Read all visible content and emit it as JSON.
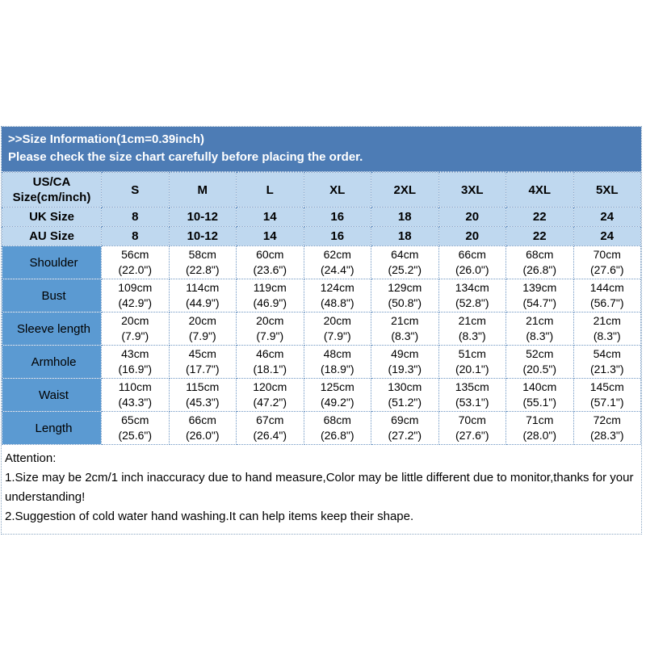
{
  "banner": {
    "title": ">>Size Information(1cm=0.39inch)",
    "subtitle": "Please check the size chart carefully before placing the order."
  },
  "table": {
    "corner_label": "US/CA\nSize(cm/inch)",
    "size_columns": [
      "S",
      "M",
      "L",
      "XL",
      "2XL",
      "3XL",
      "4XL",
      "5XL"
    ],
    "sub_rows": [
      {
        "label": "UK Size",
        "values": [
          "8",
          "10-12",
          "14",
          "16",
          "18",
          "20",
          "22",
          "24"
        ]
      },
      {
        "label": "AU Size",
        "values": [
          "8",
          "10-12",
          "14",
          "16",
          "18",
          "20",
          "22",
          "24"
        ]
      }
    ],
    "measurement_rows": [
      {
        "label": "Shoulder",
        "values": [
          "56cm\n(22.0\")",
          "58cm\n(22.8\")",
          "60cm\n(23.6\")",
          "62cm\n(24.4\")",
          "64cm\n(25.2\")",
          "66cm\n(26.0\")",
          "68cm\n(26.8\")",
          "70cm\n(27.6\")"
        ]
      },
      {
        "label": "Bust",
        "values": [
          "109cm\n(42.9\")",
          "114cm\n(44.9\")",
          "119cm\n(46.9\")",
          "124cm\n(48.8\")",
          "129cm\n(50.8\")",
          "134cm\n(52.8\")",
          "139cm\n(54.7\")",
          "144cm\n(56.7\")"
        ]
      },
      {
        "label": "Sleeve length",
        "values": [
          "20cm\n(7.9\")",
          "20cm\n(7.9\")",
          "20cm\n(7.9\")",
          "20cm\n(7.9\")",
          "21cm\n(8.3\")",
          "21cm\n(8.3\")",
          "21cm\n(8.3\")",
          "21cm\n(8.3\")"
        ]
      },
      {
        "label": "Armhole",
        "values": [
          "43cm\n(16.9\")",
          "45cm\n(17.7\")",
          "46cm\n(18.1\")",
          "48cm\n(18.9\")",
          "49cm\n(19.3\")",
          "51cm\n(20.1\")",
          "52cm\n(20.5\")",
          "54cm\n(21.3\")"
        ]
      },
      {
        "label": "Waist",
        "values": [
          "110cm\n(43.3\")",
          "115cm\n(45.3\")",
          "120cm\n(47.2\")",
          "125cm\n(49.2\")",
          "130cm\n(51.2\")",
          "135cm\n(53.1\")",
          "140cm\n(55.1\")",
          "145cm\n(57.1\")"
        ]
      },
      {
        "label": "Length",
        "values": [
          "65cm\n(25.6\")",
          "66cm\n(26.0\")",
          "67cm\n(26.4\")",
          "68cm\n(26.8\")",
          "69cm\n(27.2\")",
          "70cm\n(27.6\")",
          "71cm\n(28.0\")",
          "72cm\n(28.3\")"
        ]
      }
    ]
  },
  "attention": {
    "heading": "Attention:",
    "notes": [
      "1.Size may be 2cm/1 inch inaccuracy due to hand measure,Color may be little different due to monitor,thanks for your understanding!",
      "2.Suggestion of cold water hand washing.It can help items keep their shape."
    ]
  },
  "colors": {
    "banner_blue": "#4d7cb5",
    "label_column_blue": "#5b9ad2",
    "header_light_blue": "#bfd8ef",
    "dotted_border_blue": "#6e96c3"
  }
}
